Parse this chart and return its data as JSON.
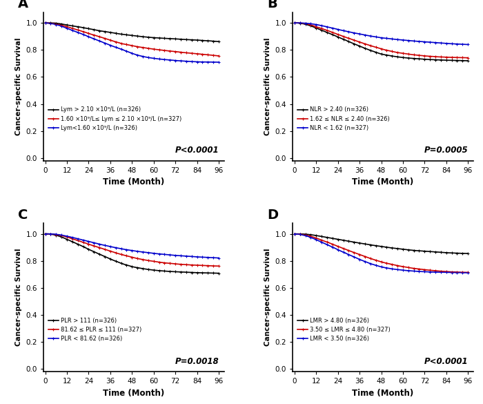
{
  "panels": [
    {
      "label": "A",
      "p_value": "P<0.0001",
      "legend_entries": [
        {
          "label": "Lym > 2.10 ×10⁹/L (n=326)",
          "color": "#000000"
        },
        {
          "label": "1.60 ×10⁹/L≤ Lym ≤ 2.10 ×10⁹/L (n=327)",
          "color": "#cc0000"
        },
        {
          "label": "Lym<1.60 ×10⁹/L (n=326)",
          "color": "#0000cc"
        }
      ],
      "curves": [
        {
          "color": "#000000",
          "x": [
            0,
            3,
            6,
            9,
            12,
            15,
            18,
            21,
            24,
            27,
            30,
            33,
            36,
            39,
            42,
            45,
            48,
            51,
            54,
            57,
            60,
            63,
            66,
            69,
            72,
            75,
            78,
            81,
            84,
            87,
            90,
            93,
            96
          ],
          "y": [
            1.0,
            1.0,
            0.998,
            0.992,
            0.985,
            0.978,
            0.972,
            0.965,
            0.958,
            0.95,
            0.942,
            0.936,
            0.93,
            0.923,
            0.917,
            0.912,
            0.907,
            0.902,
            0.898,
            0.894,
            0.891,
            0.888,
            0.886,
            0.884,
            0.882,
            0.879,
            0.877,
            0.875,
            0.873,
            0.87,
            0.868,
            0.865,
            0.862
          ]
        },
        {
          "color": "#cc0000",
          "x": [
            0,
            3,
            6,
            9,
            12,
            15,
            18,
            21,
            24,
            27,
            30,
            33,
            36,
            39,
            42,
            45,
            48,
            51,
            54,
            57,
            60,
            63,
            66,
            69,
            72,
            75,
            78,
            81,
            84,
            87,
            90,
            93,
            96
          ],
          "y": [
            1.0,
            0.998,
            0.992,
            0.983,
            0.972,
            0.96,
            0.948,
            0.936,
            0.922,
            0.91,
            0.898,
            0.885,
            0.872,
            0.86,
            0.848,
            0.84,
            0.832,
            0.824,
            0.818,
            0.812,
            0.806,
            0.801,
            0.796,
            0.792,
            0.788,
            0.783,
            0.779,
            0.775,
            0.771,
            0.768,
            0.764,
            0.76,
            0.756
          ]
        },
        {
          "color": "#0000cc",
          "x": [
            0,
            3,
            6,
            9,
            12,
            15,
            18,
            21,
            24,
            27,
            30,
            33,
            36,
            39,
            42,
            45,
            48,
            51,
            54,
            57,
            60,
            63,
            66,
            69,
            72,
            75,
            78,
            81,
            84,
            87,
            90,
            93,
            96
          ],
          "y": [
            1.0,
            0.996,
            0.988,
            0.976,
            0.96,
            0.945,
            0.93,
            0.915,
            0.898,
            0.882,
            0.866,
            0.85,
            0.834,
            0.82,
            0.806,
            0.79,
            0.775,
            0.762,
            0.752,
            0.744,
            0.738,
            0.733,
            0.729,
            0.726,
            0.722,
            0.719,
            0.716,
            0.714,
            0.712,
            0.711,
            0.71,
            0.71,
            0.709
          ]
        }
      ]
    },
    {
      "label": "B",
      "p_value": "P=0.0005",
      "legend_entries": [
        {
          "label": "NLR > 2.40 (n=326)",
          "color": "#000000"
        },
        {
          "label": "1.62 ≤ NLR ≤ 2.40 (n=326)",
          "color": "#cc0000"
        },
        {
          "label": "NLR < 1.62 (n=327)",
          "color": "#0000cc"
        }
      ],
      "curves": [
        {
          "color": "#000000",
          "x": [
            0,
            3,
            6,
            9,
            12,
            15,
            18,
            21,
            24,
            27,
            30,
            33,
            36,
            39,
            42,
            45,
            48,
            51,
            54,
            57,
            60,
            63,
            66,
            69,
            72,
            75,
            78,
            81,
            84,
            87,
            90,
            93,
            96
          ],
          "y": [
            1.0,
            0.998,
            0.99,
            0.978,
            0.962,
            0.946,
            0.93,
            0.914,
            0.896,
            0.88,
            0.862,
            0.845,
            0.828,
            0.812,
            0.797,
            0.783,
            0.77,
            0.762,
            0.755,
            0.749,
            0.744,
            0.74,
            0.737,
            0.734,
            0.731,
            0.729,
            0.727,
            0.725,
            0.724,
            0.723,
            0.722,
            0.721,
            0.72
          ]
        },
        {
          "color": "#cc0000",
          "x": [
            0,
            3,
            6,
            9,
            12,
            15,
            18,
            21,
            24,
            27,
            30,
            33,
            36,
            39,
            42,
            45,
            48,
            51,
            54,
            57,
            60,
            63,
            66,
            69,
            72,
            75,
            78,
            81,
            84,
            87,
            90,
            93,
            96
          ],
          "y": [
            1.0,
            0.999,
            0.994,
            0.985,
            0.972,
            0.958,
            0.945,
            0.93,
            0.915,
            0.9,
            0.886,
            0.872,
            0.858,
            0.845,
            0.832,
            0.82,
            0.808,
            0.798,
            0.789,
            0.781,
            0.775,
            0.769,
            0.764,
            0.76,
            0.756,
            0.753,
            0.75,
            0.748,
            0.746,
            0.745,
            0.744,
            0.743,
            0.742
          ]
        },
        {
          "color": "#0000cc",
          "x": [
            0,
            3,
            6,
            9,
            12,
            15,
            18,
            21,
            24,
            27,
            30,
            33,
            36,
            39,
            42,
            45,
            48,
            51,
            54,
            57,
            60,
            63,
            66,
            69,
            72,
            75,
            78,
            81,
            84,
            87,
            90,
            93,
            96
          ],
          "y": [
            1.0,
            1.0,
            0.998,
            0.994,
            0.988,
            0.98,
            0.971,
            0.962,
            0.952,
            0.943,
            0.934,
            0.926,
            0.918,
            0.91,
            0.903,
            0.897,
            0.89,
            0.886,
            0.881,
            0.877,
            0.873,
            0.869,
            0.866,
            0.863,
            0.86,
            0.857,
            0.854,
            0.851,
            0.848,
            0.846,
            0.844,
            0.842,
            0.84
          ]
        }
      ]
    },
    {
      "label": "C",
      "p_value": "P=0.0018",
      "legend_entries": [
        {
          "label": "PLR > 111 (n=326)",
          "color": "#000000"
        },
        {
          "label": "81.62 ≤ PLR ≤ 111 (n=327)",
          "color": "#cc0000"
        },
        {
          "label": "PLR < 81.62 (n=326)",
          "color": "#0000cc"
        }
      ],
      "curves": [
        {
          "color": "#000000",
          "x": [
            0,
            3,
            6,
            9,
            12,
            15,
            18,
            21,
            24,
            27,
            30,
            33,
            36,
            39,
            42,
            45,
            48,
            51,
            54,
            57,
            60,
            63,
            66,
            69,
            72,
            75,
            78,
            81,
            84,
            87,
            90,
            93,
            96
          ],
          "y": [
            1.0,
            0.998,
            0.99,
            0.977,
            0.96,
            0.942,
            0.924,
            0.906,
            0.886,
            0.868,
            0.85,
            0.832,
            0.814,
            0.798,
            0.782,
            0.77,
            0.758,
            0.75,
            0.743,
            0.737,
            0.732,
            0.728,
            0.725,
            0.722,
            0.72,
            0.718,
            0.716,
            0.714,
            0.713,
            0.712,
            0.711,
            0.71,
            0.709
          ]
        },
        {
          "color": "#cc0000",
          "x": [
            0,
            3,
            6,
            9,
            12,
            15,
            18,
            21,
            24,
            27,
            30,
            33,
            36,
            39,
            42,
            45,
            48,
            51,
            54,
            57,
            60,
            63,
            66,
            69,
            72,
            75,
            78,
            81,
            84,
            87,
            90,
            93,
            96
          ],
          "y": [
            1.0,
            0.999,
            0.995,
            0.988,
            0.977,
            0.964,
            0.951,
            0.938,
            0.924,
            0.911,
            0.898,
            0.885,
            0.872,
            0.86,
            0.848,
            0.838,
            0.827,
            0.818,
            0.81,
            0.803,
            0.797,
            0.791,
            0.786,
            0.782,
            0.778,
            0.775,
            0.772,
            0.77,
            0.768,
            0.766,
            0.764,
            0.763,
            0.762
          ]
        },
        {
          "color": "#0000cc",
          "x": [
            0,
            3,
            6,
            9,
            12,
            15,
            18,
            21,
            24,
            27,
            30,
            33,
            36,
            39,
            42,
            45,
            48,
            51,
            54,
            57,
            60,
            63,
            66,
            69,
            72,
            75,
            78,
            81,
            84,
            87,
            90,
            93,
            96
          ],
          "y": [
            1.0,
            1.0,
            0.997,
            0.991,
            0.983,
            0.974,
            0.964,
            0.954,
            0.944,
            0.934,
            0.924,
            0.915,
            0.906,
            0.898,
            0.89,
            0.883,
            0.877,
            0.871,
            0.866,
            0.861,
            0.856,
            0.852,
            0.848,
            0.844,
            0.841,
            0.838,
            0.835,
            0.833,
            0.83,
            0.828,
            0.826,
            0.824,
            0.822
          ]
        }
      ]
    },
    {
      "label": "D",
      "p_value": "P<0.0001",
      "legend_entries": [
        {
          "label": "LMR > 4.80 (n=326)",
          "color": "#000000"
        },
        {
          "label": "3.50 ≤ LMR ≤ 4.80 (n=327)",
          "color": "#cc0000"
        },
        {
          "label": "LMR < 3.50 (n=326)",
          "color": "#0000cc"
        }
      ],
      "curves": [
        {
          "color": "#000000",
          "x": [
            0,
            3,
            6,
            9,
            12,
            15,
            18,
            21,
            24,
            27,
            30,
            33,
            36,
            39,
            42,
            45,
            48,
            51,
            54,
            57,
            60,
            63,
            66,
            69,
            72,
            75,
            78,
            81,
            84,
            87,
            90,
            93,
            96
          ],
          "y": [
            1.0,
            1.0,
            0.998,
            0.994,
            0.988,
            0.981,
            0.974,
            0.967,
            0.96,
            0.953,
            0.946,
            0.939,
            0.932,
            0.926,
            0.919,
            0.913,
            0.907,
            0.901,
            0.896,
            0.891,
            0.886,
            0.882,
            0.878,
            0.875,
            0.872,
            0.869,
            0.866,
            0.864,
            0.861,
            0.859,
            0.857,
            0.856,
            0.855
          ]
        },
        {
          "color": "#cc0000",
          "x": [
            0,
            3,
            6,
            9,
            12,
            15,
            18,
            21,
            24,
            27,
            30,
            33,
            36,
            39,
            42,
            45,
            48,
            51,
            54,
            57,
            60,
            63,
            66,
            69,
            72,
            75,
            78,
            81,
            84,
            87,
            90,
            93,
            96
          ],
          "y": [
            1.0,
            0.998,
            0.992,
            0.982,
            0.969,
            0.954,
            0.94,
            0.924,
            0.908,
            0.893,
            0.877,
            0.862,
            0.847,
            0.832,
            0.818,
            0.806,
            0.793,
            0.783,
            0.774,
            0.765,
            0.758,
            0.751,
            0.745,
            0.74,
            0.735,
            0.731,
            0.727,
            0.724,
            0.721,
            0.719,
            0.717,
            0.716,
            0.715
          ]
        },
        {
          "color": "#0000cc",
          "x": [
            0,
            3,
            6,
            9,
            12,
            15,
            18,
            21,
            24,
            27,
            30,
            33,
            36,
            39,
            42,
            45,
            48,
            51,
            54,
            57,
            60,
            63,
            66,
            69,
            72,
            75,
            78,
            81,
            84,
            87,
            90,
            93,
            96
          ],
          "y": [
            1.0,
            0.996,
            0.987,
            0.974,
            0.957,
            0.939,
            0.921,
            0.903,
            0.883,
            0.865,
            0.847,
            0.829,
            0.811,
            0.796,
            0.78,
            0.768,
            0.756,
            0.748,
            0.741,
            0.736,
            0.731,
            0.728,
            0.725,
            0.722,
            0.72,
            0.718,
            0.717,
            0.716,
            0.715,
            0.714,
            0.714,
            0.713,
            0.713
          ]
        }
      ]
    }
  ],
  "xlabel": "Time (Month)",
  "ylabel": "Cancer-specific Survival",
  "xticks": [
    0,
    12,
    24,
    36,
    48,
    60,
    72,
    84,
    96
  ],
  "yticks": [
    0.0,
    0.2,
    0.4,
    0.6,
    0.8,
    1.0
  ],
  "ylim": [
    -0.02,
    1.08
  ],
  "xlim": [
    -1,
    99
  ],
  "background_color": "#ffffff",
  "linewidth": 1.2,
  "marker": "+",
  "markersize": 3.5,
  "legend_fontsize": 6.0,
  "tick_fontsize": 7.5,
  "xlabel_fontsize": 8.5,
  "ylabel_fontsize": 7.5,
  "panel_label_fontsize": 14,
  "pvalue_fontsize": 8.5
}
